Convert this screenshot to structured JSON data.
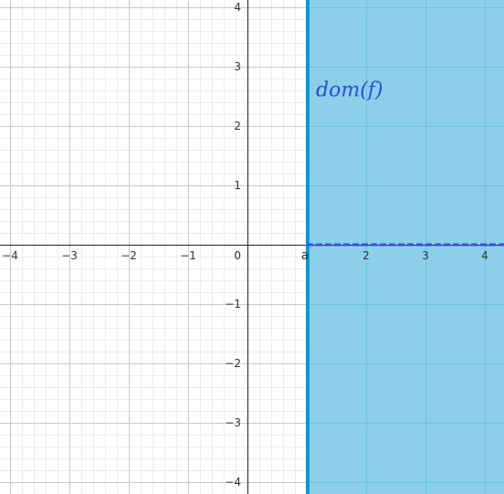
{
  "chart_data": {
    "type": "area",
    "title": "",
    "xlabel": "",
    "ylabel": "",
    "xlim": [
      -4.2,
      4.3
    ],
    "ylim": [
      -4.2,
      4.1
    ],
    "x_ticks": [
      -4,
      -3,
      -2,
      -1,
      1,
      2,
      3,
      4
    ],
    "y_ticks": [
      -4,
      -3,
      -2,
      -1,
      1,
      2,
      3,
      4
    ],
    "x_tick_labels": [
      "−4",
      "−3",
      "−2",
      "−1",
      "a",
      "2",
      "3",
      "4"
    ],
    "y_tick_labels": [
      "−4",
      "−3",
      "−2",
      "−1",
      "1",
      "2",
      "3",
      "4"
    ],
    "origin_label": "0",
    "grid": true,
    "minor_grid_divisions": 5,
    "shaded_region": {
      "description_label": "dom(f)",
      "x_min": 1,
      "x_max": null,
      "boundary_x": 1,
      "boundary_label": "a"
    },
    "domain_segment": {
      "x_from": 1,
      "x_to": null,
      "y": 0,
      "style": "dashed"
    },
    "colors": {
      "shade": "#8bd0e8",
      "boundary": "#1596c8",
      "segment": "#3a4bf0",
      "label": "#2a4bd8",
      "a_label": "#1596c8",
      "axis": "#222222",
      "major_grid": "#c8c8c8",
      "minor_grid": "#ececec"
    }
  }
}
